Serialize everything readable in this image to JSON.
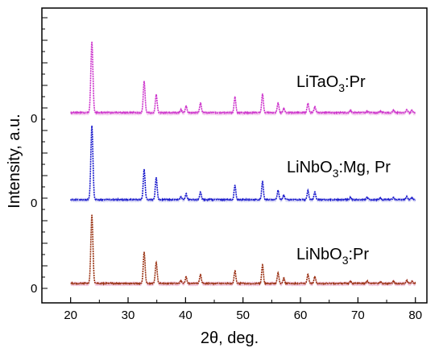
{
  "chart_data": {
    "type": "line",
    "title": "",
    "xlabel": "2θ, deg.",
    "ylabel": "Intensity, a.u.",
    "xlim": [
      15,
      82
    ],
    "x_ticks": [
      20,
      30,
      40,
      50,
      60,
      70,
      80
    ],
    "x_tick_labels": [
      "20",
      "30",
      "40",
      "50",
      "60",
      "70",
      "80"
    ],
    "zero_label": "0",
    "grid": false,
    "peak_positions_2theta": [
      23.7,
      32.8,
      34.9,
      39.2,
      40.1,
      42.6,
      48.6,
      53.4,
      56.1,
      57.1,
      61.3,
      62.5,
      68.7,
      71.6,
      73.9,
      76.2,
      78.5,
      79.4
    ],
    "series": [
      {
        "name": "LiTaO3:Pr",
        "label_main": "LiTaO",
        "label_sub": "3",
        "label_tail": ":Pr",
        "color": "#cc33cc",
        "shade": "#f3c6ec",
        "baseline": 0,
        "peak_heights": [
          0.95,
          0.42,
          0.24,
          0.04,
          0.09,
          0.13,
          0.21,
          0.25,
          0.13,
          0.06,
          0.12,
          0.08,
          0.03,
          0.02,
          0.02,
          0.03,
          0.04,
          0.03
        ]
      },
      {
        "name": "LiNbO3:Mg, Pr",
        "label_main": "LiNbO",
        "label_sub": "3",
        "label_tail": ":Mg, Pr",
        "color": "#1a1acc",
        "shade": "#d6d6f5",
        "baseline": 0,
        "peak_heights": [
          0.98,
          0.4,
          0.29,
          0.04,
          0.08,
          0.1,
          0.19,
          0.24,
          0.12,
          0.06,
          0.12,
          0.1,
          0.03,
          0.03,
          0.02,
          0.03,
          0.04,
          0.03
        ]
      },
      {
        "name": "LiNbO3:Pr",
        "label_main": "LiNbO",
        "label_sub": "3",
        "label_tail": ":Pr",
        "color": "#993311",
        "shade": "#f0bfd8",
        "baseline": 0,
        "peak_heights": [
          0.92,
          0.42,
          0.28,
          0.04,
          0.09,
          0.12,
          0.17,
          0.25,
          0.14,
          0.07,
          0.12,
          0.09,
          0.03,
          0.03,
          0.02,
          0.03,
          0.04,
          0.03
        ]
      }
    ]
  }
}
